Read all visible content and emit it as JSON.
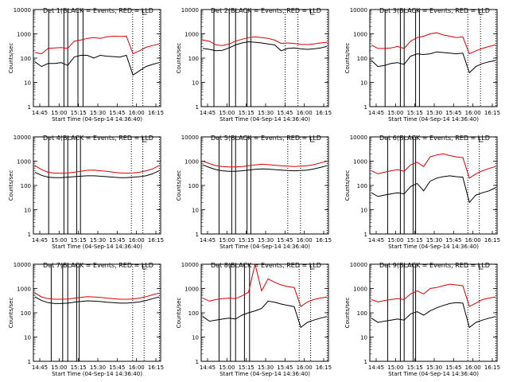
{
  "chart_data": [
    {
      "type": "line",
      "title": "Det 1(BLACK = Events, RED = LLD",
      "xlabel": "Start Time (04-Sep-14 14:36:40)",
      "ylabel": "Counts/sec",
      "x_ticks": [
        "14:45",
        "15:00",
        "15:15",
        "15:30",
        "15:45",
        "16:00",
        "16:15"
      ],
      "y_ticks": [
        "1",
        "10",
        "100",
        "1000",
        "10000"
      ],
      "ylim": [
        1,
        10000
      ],
      "yscale": "log",
      "series": [
        {
          "name": "BLACK = Events",
          "color": "#000000",
          "values": [
            70,
            45,
            60,
            60,
            65,
            50,
            110,
            130,
            130,
            100,
            130,
            120,
            115,
            110,
            130,
            20,
            30,
            45,
            55,
            65
          ]
        },
        {
          "name": "RED = LLD",
          "color": "#e00000",
          "values": [
            170,
            150,
            250,
            260,
            270,
            250,
            500,
            550,
            650,
            700,
            650,
            750,
            800,
            780,
            800,
            150,
            200,
            280,
            330,
            380
          ]
        }
      ]
    },
    {
      "type": "line",
      "title": "Det 2(BLACK = Events, RED = LLD",
      "xlabel": "Start Time (04-Sep-14 14:36:40)",
      "ylabel": "Counts/sec",
      "x_ticks": [
        "14:45",
        "15:00",
        "15:15",
        "15:30",
        "15:45",
        "16:00",
        "16:15"
      ],
      "y_ticks": [
        "1",
        "10",
        "100",
        "1000",
        "10000"
      ],
      "ylim": [
        1,
        10000
      ],
      "yscale": "log",
      "series": [
        {
          "name": "BLACK = Events",
          "color": "#000000",
          "values": [
            250,
            230,
            200,
            210,
            260,
            350,
            420,
            470,
            450,
            420,
            380,
            350,
            200,
            250,
            260,
            240,
            230,
            240,
            260,
            300
          ]
        },
        {
          "name": "RED = LLD",
          "color": "#e00000",
          "values": [
            550,
            500,
            350,
            330,
            380,
            500,
            600,
            700,
            750,
            700,
            650,
            550,
            400,
            420,
            400,
            370,
            360,
            380,
            420,
            450
          ]
        }
      ]
    },
    {
      "type": "line",
      "title": "Det 3(BLACK = Events, RED = LLD",
      "xlabel": "Start Time (04-Sep-14 14:36:40)",
      "ylabel": "Counts/sec",
      "x_ticks": [
        "14:45",
        "15:00",
        "15:15",
        "15:30",
        "15:45",
        "16:00",
        "16:15"
      ],
      "y_ticks": [
        "1",
        "10",
        "100",
        "1000",
        "10000"
      ],
      "ylim": [
        1,
        10000
      ],
      "yscale": "log",
      "series": [
        {
          "name": "BLACK = Events",
          "color": "#000000",
          "values": [
            80,
            45,
            50,
            60,
            65,
            55,
            120,
            150,
            140,
            150,
            180,
            170,
            160,
            150,
            160,
            25,
            45,
            60,
            70,
            80
          ]
        },
        {
          "name": "RED = LLD",
          "color": "#e00000",
          "values": [
            350,
            250,
            250,
            260,
            300,
            250,
            500,
            700,
            800,
            1000,
            1100,
            900,
            800,
            700,
            750,
            150,
            200,
            250,
            300,
            350
          ]
        }
      ]
    },
    {
      "type": "line",
      "title": "Det 4(BLACK = Events, RED = LLD",
      "xlabel": "Start Time (04-Sep-14 14:36:40)",
      "ylabel": "Counts/sec",
      "x_ticks": [
        "14:45",
        "15:00",
        "15:15",
        "15:30",
        "15:45",
        "16:00",
        "16:15"
      ],
      "y_ticks": [
        "1",
        "10",
        "100",
        "1000",
        "10000"
      ],
      "ylim": [
        1,
        10000
      ],
      "yscale": "log",
      "series": [
        {
          "name": "BLACK = Events",
          "color": "#000000",
          "values": [
            350,
            260,
            220,
            210,
            210,
            220,
            230,
            240,
            250,
            250,
            240,
            230,
            220,
            210,
            210,
            220,
            230,
            250,
            300,
            400
          ]
        },
        {
          "name": "RED = LLD",
          "color": "#e00000",
          "values": [
            650,
            450,
            350,
            320,
            320,
            330,
            350,
            380,
            420,
            430,
            400,
            380,
            350,
            330,
            320,
            330,
            350,
            400,
            480,
            650
          ]
        }
      ]
    },
    {
      "type": "line",
      "title": "Det 5(BLACK = Events, RED = LLD",
      "xlabel": "Start Time (04-Sep-14 14:36:40)",
      "ylabel": "Counts/sec",
      "x_ticks": [
        "14:45",
        "15:00",
        "15:15",
        "15:30",
        "15:45",
        "16:00",
        "16:15"
      ],
      "y_ticks": [
        "1",
        "10",
        "100",
        "1000",
        "10000"
      ],
      "ylim": [
        1,
        10000
      ],
      "yscale": "log",
      "series": [
        {
          "name": "BLACK = Events",
          "color": "#000000",
          "values": [
            700,
            550,
            450,
            400,
            380,
            380,
            400,
            430,
            460,
            480,
            470,
            450,
            430,
            410,
            400,
            410,
            430,
            480,
            550,
            650
          ]
        },
        {
          "name": "RED = LLD",
          "color": "#e00000",
          "values": [
            1000,
            800,
            650,
            600,
            580,
            580,
            600,
            650,
            700,
            750,
            720,
            680,
            650,
            620,
            600,
            620,
            650,
            720,
            850,
            1000
          ]
        }
      ]
    },
    {
      "type": "line",
      "title": "Det 6(BLACK = Events, RED = LLD",
      "xlabel": "Start Time (04-Sep-14 14:36:40)",
      "ylabel": "Counts/sec",
      "x_ticks": [
        "14:45",
        "15:00",
        "15:15",
        "15:30",
        "15:45",
        "16:00",
        "16:15"
      ],
      "y_ticks": [
        "1",
        "10",
        "100",
        "1000",
        "10000"
      ],
      "ylim": [
        1,
        10000
      ],
      "yscale": "log",
      "series": [
        {
          "name": "BLACK = Events",
          "color": "#000000",
          "values": [
            50,
            35,
            40,
            45,
            50,
            45,
            90,
            120,
            60,
            150,
            200,
            230,
            250,
            230,
            220,
            20,
            40,
            50,
            60,
            80
          ]
        },
        {
          "name": "RED = LLD",
          "color": "#e00000",
          "values": [
            400,
            300,
            350,
            400,
            450,
            380,
            700,
            900,
            600,
            1500,
            1800,
            2000,
            1700,
            1500,
            1400,
            200,
            300,
            400,
            500,
            600
          ]
        }
      ]
    },
    {
      "type": "line",
      "title": "Det 7(BLACK = Events, RED = LLD",
      "xlabel": "Start Time (04-Sep-14 14:36:40)",
      "ylabel": "Counts/sec",
      "x_ticks": [
        "14:45",
        "15:00",
        "15:15",
        "15:30",
        "15:45",
        "16:00",
        "16:15"
      ],
      "y_ticks": [
        "1",
        "10",
        "100",
        "1000",
        "10000"
      ],
      "ylim": [
        1,
        10000
      ],
      "yscale": "log",
      "series": [
        {
          "name": "BLACK = Events",
          "color": "#000000",
          "values": [
            450,
            320,
            260,
            240,
            240,
            250,
            270,
            290,
            310,
            300,
            290,
            270,
            260,
            250,
            250,
            260,
            280,
            320,
            380,
            450
          ]
        },
        {
          "name": "RED = LLD",
          "color": "#e00000",
          "values": [
            650,
            450,
            380,
            360,
            360,
            370,
            400,
            430,
            460,
            450,
            430,
            400,
            380,
            360,
            360,
            370,
            400,
            460,
            550,
            650
          ]
        }
      ]
    },
    {
      "type": "line",
      "title": "Det 8(BLACK = Events, RED = LLD",
      "xlabel": "Start Time (04-Sep-14 14:36:40)",
      "ylabel": "Counts/sec",
      "x_ticks": [
        "14:45",
        "15:00",
        "15:15",
        "15:30",
        "15:45",
        "16:00",
        "16:15"
      ],
      "y_ticks": [
        "1",
        "10",
        "100",
        "1000",
        "10000"
      ],
      "ylim": [
        1,
        10000
      ],
      "yscale": "log",
      "series": [
        {
          "name": "BLACK = Events",
          "color": "#000000",
          "values": [
            70,
            45,
            50,
            55,
            60,
            55,
            80,
            100,
            120,
            150,
            300,
            270,
            230,
            200,
            180,
            25,
            40,
            50,
            60,
            70
          ]
        },
        {
          "name": "RED = LLD",
          "color": "#e00000",
          "values": [
            400,
            300,
            350,
            380,
            400,
            380,
            500,
            700,
            10000,
            800,
            2500,
            1800,
            1400,
            1200,
            1100,
            180,
            280,
            350,
            400,
            450
          ]
        }
      ]
    },
    {
      "type": "line",
      "title": "Det 9(BLACK = Events, RED = LLD",
      "xlabel": "Start Time (04-Sep-14 14:36:40)",
      "ylabel": "Counts/sec",
      "x_ticks": [
        "14:45",
        "15:00",
        "15:15",
        "15:30",
        "15:45",
        "16:00",
        "16:15"
      ],
      "y_ticks": [
        "1",
        "10",
        "100",
        "1000",
        "10000"
      ],
      "ylim": [
        1,
        10000
      ],
      "yscale": "log",
      "series": [
        {
          "name": "BLACK = Events",
          "color": "#000000",
          "values": [
            60,
            40,
            45,
            50,
            55,
            50,
            90,
            110,
            80,
            120,
            160,
            200,
            240,
            260,
            250,
            25,
            40,
            50,
            60,
            70
          ]
        },
        {
          "name": "RED = LLD",
          "color": "#e00000",
          "values": [
            350,
            280,
            320,
            350,
            380,
            350,
            600,
            800,
            600,
            1000,
            1100,
            1300,
            1500,
            1400,
            1300,
            180,
            250,
            350,
            400,
            450
          ]
        }
      ]
    }
  ]
}
